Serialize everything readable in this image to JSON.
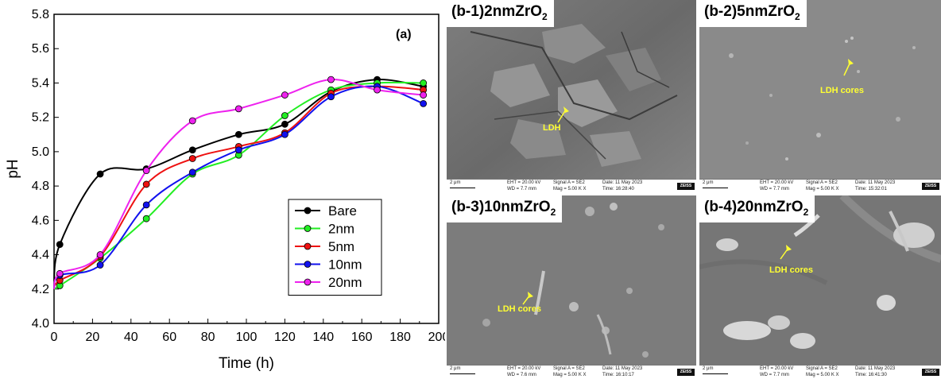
{
  "chart_data": {
    "type": "line",
    "panel_label": "(a)",
    "xlabel": "Time (h)",
    "ylabel": "pH",
    "xlim": [
      0,
      200
    ],
    "ylim": [
      4.0,
      5.8
    ],
    "xticks": [
      "0",
      "20",
      "40",
      "60",
      "80",
      "100",
      "120",
      "140",
      "160",
      "180",
      "200"
    ],
    "yticks": [
      "4.0",
      "4.2",
      "4.4",
      "4.6",
      "4.8",
      "5.0",
      "5.2",
      "5.4",
      "5.6",
      "5.8"
    ],
    "legend_position": "lower-right",
    "series": [
      {
        "name": "Bare",
        "color": "#000000",
        "x": [
          0,
          3,
          24,
          48,
          72,
          96,
          120,
          144,
          168,
          192
        ],
        "y": [
          4.2,
          4.46,
          4.87,
          4.9,
          5.01,
          5.1,
          5.16,
          5.35,
          5.42,
          5.38
        ]
      },
      {
        "name": "2nm",
        "color": "#22ee22",
        "x": [
          0,
          3,
          24,
          48,
          72,
          96,
          120,
          144,
          168,
          192
        ],
        "y": [
          4.2,
          4.22,
          4.38,
          4.61,
          4.87,
          4.98,
          5.21,
          5.36,
          5.4,
          5.4
        ]
      },
      {
        "name": "5nm",
        "color": "#ee1111",
        "x": [
          0,
          3,
          24,
          48,
          72,
          96,
          120,
          144,
          168,
          192
        ],
        "y": [
          4.2,
          4.25,
          4.39,
          4.81,
          4.96,
          5.03,
          5.11,
          5.34,
          5.38,
          5.36
        ]
      },
      {
        "name": "10nm",
        "color": "#1111ee",
        "x": [
          0,
          3,
          24,
          48,
          72,
          96,
          120,
          144,
          168,
          192
        ],
        "y": [
          4.2,
          4.28,
          4.34,
          4.69,
          4.88,
          5.01,
          5.1,
          5.32,
          5.38,
          5.28
        ]
      },
      {
        "name": "20nm",
        "color": "#ee22ee",
        "x": [
          0,
          3,
          24,
          48,
          72,
          96,
          120,
          144,
          168,
          192
        ],
        "y": [
          4.2,
          4.29,
          4.4,
          4.89,
          5.18,
          5.25,
          5.33,
          5.42,
          5.36,
          5.33
        ]
      }
    ]
  },
  "sem": {
    "b1": {
      "label": "(b-1)2nmZrO",
      "sub": "2",
      "annotations": [
        "LDH"
      ],
      "databar": {
        "scale": "2 μm",
        "eht": "EHT = 20.00 kV",
        "wd": "WD = 7.7 mm",
        "signal": "Signal A = SE2",
        "mag": "Mag = 5.00 K X",
        "date": "Date: 11 May 2023",
        "time": "Time: 16:28:40"
      }
    },
    "b2": {
      "label": "(b-2)5nmZrO",
      "sub": "2",
      "annotations": [
        "LDH cores"
      ],
      "databar": {
        "scale": "2 μm",
        "eht": "EHT = 20.00 kV",
        "wd": "WD = 7.7 mm",
        "signal": "Signal A = SE2",
        "mag": "Mag = 5.00 K X",
        "date": "Date: 11 May 2023",
        "time": "Time: 15:32:01"
      }
    },
    "b3": {
      "label": "(b-3)10nmZrO",
      "sub": "2",
      "annotations": [
        "LDH cores"
      ],
      "databar": {
        "scale": "2 μm",
        "eht": "EHT = 20.00 kV",
        "wd": "WD = 7.6 mm",
        "signal": "Signal A = SE2",
        "mag": "Mag = 5.00 K X",
        "date": "Date: 11 May 2023",
        "time": "Time: 16:10:17"
      }
    },
    "b4": {
      "label": "(b-4)20nmZrO",
      "sub": "2",
      "annotations": [
        "LDH cores"
      ],
      "databar": {
        "scale": "2 μm",
        "eht": "EHT = 20.00 kV",
        "wd": "WD = 7.7 mm",
        "signal": "Signal A = SE2",
        "mag": "Mag = 5.00 K X",
        "date": "Date: 11 May 2023",
        "time": "Time: 16:41:30"
      }
    }
  }
}
